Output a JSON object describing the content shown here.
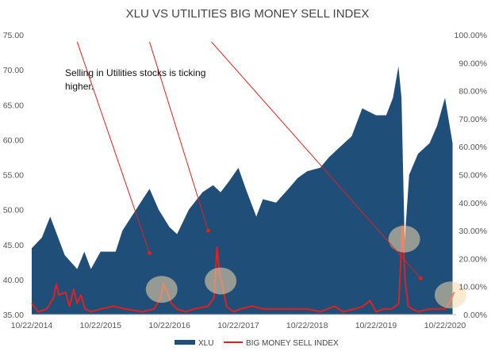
{
  "chart_data": {
    "type": "area",
    "title": "XLU VS UTILITIES BIG MONEY SELL INDEX",
    "annotation": "Selling in Utilities stocks is ticking higher.",
    "x_ticks": [
      "10/22/2014",
      "10/22/2015",
      "10/22/2016",
      "10/22/2017",
      "10/22/2018",
      "10/22/2019",
      "10/22/2020"
    ],
    "left_axis": {
      "ylim": [
        35,
        75
      ],
      "ticks": [
        "35.00",
        "40.00",
        "45.00",
        "50.00",
        "55.00",
        "60.00",
        "65.00",
        "70.00",
        "75.00"
      ]
    },
    "right_axis": {
      "ylim": [
        0,
        100
      ],
      "ticks": [
        "0.00%",
        "10.00%",
        "20.00%",
        "30.00%",
        "40.00%",
        "50.00%",
        "60.00%",
        "70.00%",
        "80.00%",
        "90.00%",
        "100.00%"
      ]
    },
    "grid": false,
    "legend": [
      "XLU",
      "BIG MONEY SELL INDEX"
    ],
    "colors": {
      "xlu": "#1f4e79",
      "sell_index": "#e3211c",
      "arrow": "#e3211c",
      "highlight": "#f5d9a8"
    },
    "series": [
      {
        "name": "XLU",
        "axis": "left",
        "x": [
          "2014-10-22",
          "2014-12-15",
          "2015-01-28",
          "2015-04-15",
          "2015-06-20",
          "2015-07-28",
          "2015-09-01",
          "2015-10-22",
          "2016-01-10",
          "2016-02-15",
          "2016-04-15",
          "2016-07-08",
          "2016-08-25",
          "2016-10-22",
          "2016-12-01",
          "2017-02-01",
          "2017-04-15",
          "2017-06-10",
          "2017-07-20",
          "2017-09-01",
          "2017-10-22",
          "2017-11-30",
          "2018-01-25",
          "2018-03-01",
          "2018-05-10",
          "2018-07-15",
          "2018-09-01",
          "2018-10-22",
          "2018-12-30",
          "2019-02-15",
          "2019-04-15",
          "2019-06-15",
          "2019-08-10",
          "2019-10-22",
          "2019-12-15",
          "2020-01-20",
          "2020-02-18",
          "2020-03-05",
          "2020-03-22",
          "2020-04-15",
          "2020-06-01",
          "2020-08-01",
          "2020-09-10",
          "2020-10-22",
          "2020-12-01"
        ],
        "values": [
          44.5,
          46.0,
          49.0,
          43.5,
          41.5,
          44.0,
          41.5,
          44.0,
          44.0,
          47.0,
          49.5,
          53.0,
          50.0,
          47.5,
          46.5,
          50.0,
          52.5,
          53.5,
          52.5,
          54.0,
          56.0,
          53.0,
          49.0,
          51.5,
          51.0,
          53.0,
          54.5,
          55.5,
          56.0,
          57.5,
          59.0,
          60.5,
          64.5,
          63.5,
          63.5,
          66.0,
          70.5,
          66.0,
          45.5,
          55.0,
          58.0,
          59.5,
          62.0,
          66.0,
          59.5
        ]
      },
      {
        "name": "BIG MONEY SELL INDEX",
        "axis": "right",
        "x": [
          "2014-10-22",
          "2014-11-25",
          "2015-01-10",
          "2015-02-15",
          "2015-03-01",
          "2015-03-15",
          "2015-04-20",
          "2015-05-10",
          "2015-06-01",
          "2015-06-20",
          "2015-07-10",
          "2015-08-01",
          "2015-09-01",
          "2015-10-22",
          "2016-01-01",
          "2016-03-01",
          "2016-06-01",
          "2016-08-01",
          "2016-09-05",
          "2016-09-20",
          "2016-10-10",
          "2016-11-01",
          "2016-12-01",
          "2017-01-15",
          "2017-03-01",
          "2017-05-15",
          "2017-06-15",
          "2017-07-01",
          "2017-07-15",
          "2017-07-28",
          "2017-08-20",
          "2017-09-25",
          "2017-11-01",
          "2018-01-01",
          "2018-03-01",
          "2018-06-01",
          "2018-10-22",
          "2019-01-01",
          "2019-03-15",
          "2019-05-01",
          "2019-07-01",
          "2019-08-15",
          "2019-09-20",
          "2019-10-22",
          "2019-12-01",
          "2020-01-15",
          "2020-02-20",
          "2020-03-10",
          "2020-03-25",
          "2020-04-10",
          "2020-05-01",
          "2020-06-01",
          "2020-08-01",
          "2020-10-22",
          "2020-11-20",
          "2020-12-10"
        ],
        "values": [
          4,
          1,
          2,
          6,
          11,
          7,
          8,
          3,
          9,
          4,
          7,
          2,
          1,
          2,
          3,
          2,
          1,
          2,
          6,
          11,
          8,
          4,
          2,
          1,
          2,
          3,
          6,
          24,
          14,
          11,
          3,
          1,
          2,
          3,
          2,
          2,
          2,
          1,
          3,
          1,
          2,
          3,
          5,
          1,
          2,
          2,
          4,
          32,
          12,
          3,
          2,
          1,
          2,
          2,
          5,
          8
        ]
      }
    ],
    "arrows": [
      {
        "from": [
          "2015-06-20",
          74
        ],
        "to": [
          "2016-07-08",
          22
        ]
      },
      {
        "from": [
          "2016-07-08",
          74
        ],
        "to": [
          "2017-05-15",
          30
        ]
      },
      {
        "from": [
          "2017-06-01",
          74
        ],
        "to": [
          "2020-06-15",
          13
        ]
      }
    ],
    "highlights": [
      {
        "x": "2016-09-10",
        "y": 9
      },
      {
        "x": "2017-07-20",
        "y": 12
      },
      {
        "x": "2020-03-20",
        "y": 27
      },
      {
        "x": "2020-11-20",
        "y": 7
      }
    ]
  }
}
